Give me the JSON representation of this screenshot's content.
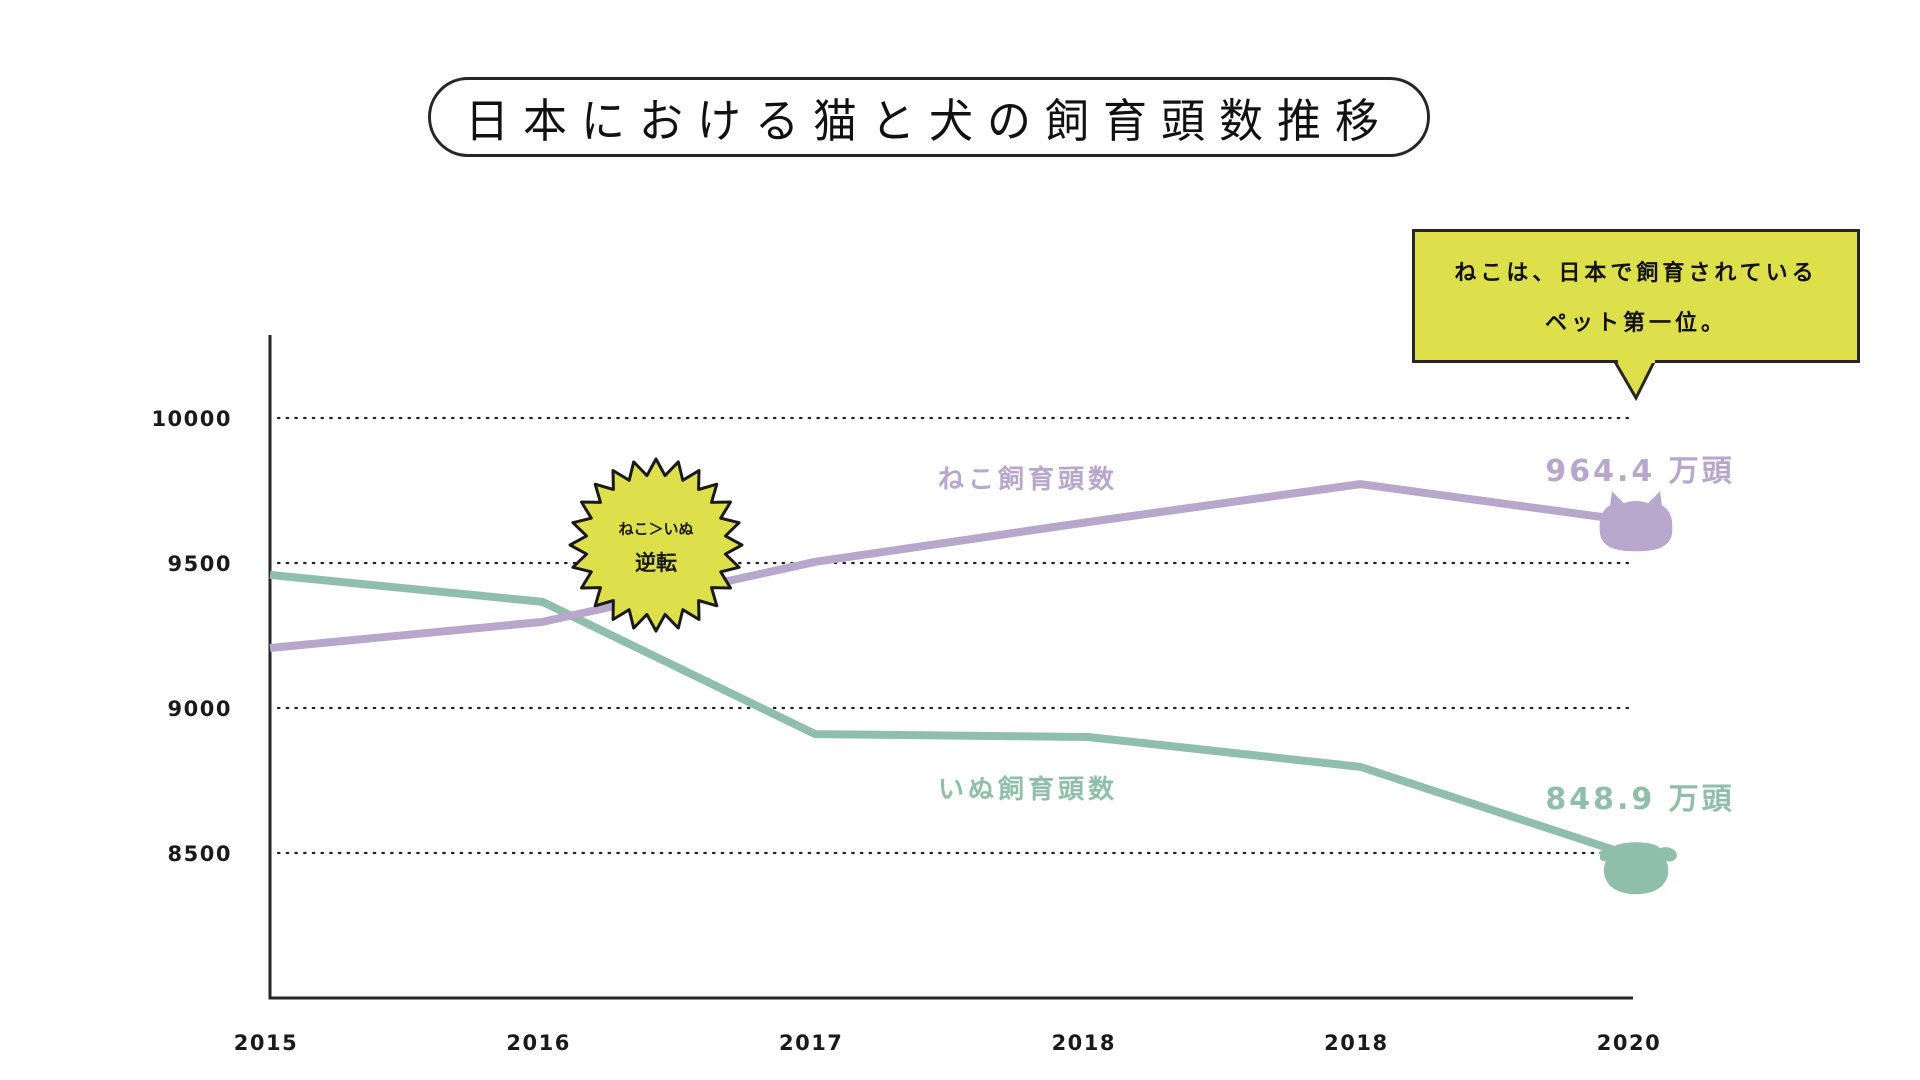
{
  "title": "日本における猫と犬の飼育頭数推移",
  "callout": {
    "line1": "ねこは、日本で飼育されている",
    "line2": "ペット第一位。"
  },
  "burst": {
    "line1": "ねこ＞いぬ",
    "line2": "逆転"
  },
  "colors": {
    "cat": "#b8a6cc",
    "dog": "#8fbfaa",
    "callout_bg": "#dde04a",
    "burst_bg": "#dde04a",
    "axis": "#2a2424"
  },
  "chart_data": {
    "type": "line",
    "title": "日本における猫と犬の飼育頭数推移",
    "xlabel": "",
    "ylabel": "",
    "categories": [
      "2015",
      "2016",
      "2017",
      "2018",
      "2018",
      "2020"
    ],
    "yticks": [
      10000,
      9500,
      9000,
      8500
    ],
    "ylim": [
      8000,
      10300
    ],
    "grid": true,
    "series": [
      {
        "name": "ねこ飼育頭数",
        "key": "cat",
        "values": [
          9207,
          9297,
          9504,
          9641,
          9772,
          9644
        ],
        "end_label": "964.4 万頭",
        "end_marker": "cat-head"
      },
      {
        "name": "いぬ飼育頭数",
        "key": "dog",
        "values": [
          9459,
          9366,
          8910,
          8900,
          8797,
          8489
        ],
        "end_label": "848.9 万頭",
        "end_marker": "dog-head"
      }
    ],
    "annotations": [
      {
        "text": "ねこ＞いぬ 逆転",
        "near_category": "2016"
      },
      {
        "text": "ねこは、日本で飼育されているペット第一位。",
        "near_category": "2020"
      }
    ]
  }
}
